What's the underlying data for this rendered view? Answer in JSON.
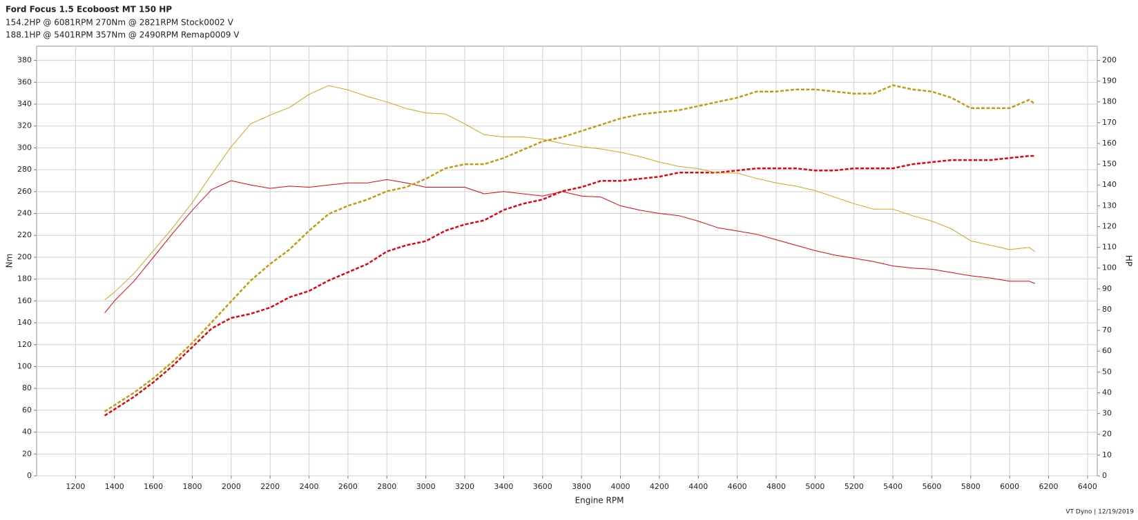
{
  "chart_data": {
    "type": "line",
    "title": "Ford Focus 1.5 Ecoboost MT 150 HP",
    "summary": [
      {
        "text": "154.2HP @  6081RPM  270Nm @ 2821RPM  Stock0002 V",
        "color": "#e8000b"
      },
      {
        "text": "188.1HP @  5401RPM  357Nm @ 2490RPM  Remap0009 V",
        "color": "#8c8c00"
      }
    ],
    "x_label": "Engine RPM",
    "y_label": "Nm",
    "y2_label": "HP",
    "footer": "VT Dyno | 12/19/2019",
    "grid": true,
    "xlim": [
      1000,
      6450
    ],
    "xticks": [
      1200,
      1400,
      1600,
      1800,
      2000,
      2200,
      2400,
      2600,
      2800,
      3000,
      3200,
      3400,
      3600,
      3800,
      4000,
      4200,
      4400,
      4600,
      4800,
      5000,
      5200,
      5400,
      5600,
      5800,
      6000,
      6200,
      6400
    ],
    "ylim": [
      0,
      393
    ],
    "yticks": [
      0,
      20,
      40,
      60,
      80,
      100,
      120,
      140,
      160,
      180,
      200,
      220,
      240,
      260,
      280,
      300,
      320,
      340,
      360,
      380
    ],
    "y2lim": [
      0,
      206.8
    ],
    "y2ticks": [
      0,
      10,
      20,
      30,
      40,
      50,
      60,
      70,
      80,
      90,
      100,
      110,
      120,
      130,
      140,
      150,
      160,
      170,
      180,
      190,
      200
    ],
    "x": [
      1350,
      1400,
      1500,
      1600,
      1700,
      1800,
      1900,
      2000,
      2100,
      2200,
      2300,
      2400,
      2500,
      2600,
      2700,
      2800,
      2900,
      3000,
      3100,
      3200,
      3300,
      3400,
      3500,
      3600,
      3700,
      3800,
      3900,
      4000,
      4100,
      4200,
      4300,
      4400,
      4500,
      4600,
      4700,
      4800,
      4900,
      5000,
      5100,
      5200,
      5300,
      5400,
      5500,
      5600,
      5700,
      5800,
      5900,
      6000,
      6100,
      6130
    ],
    "series": [
      {
        "name": "Stock0002 Nm",
        "color": "#e8000b",
        "width": 1,
        "dashed": false,
        "values": [
          149,
          160,
          178,
          200,
          222,
          243,
          262,
          270,
          266,
          263,
          265,
          264,
          266,
          268,
          268,
          271,
          268,
          264,
          264,
          264,
          258,
          260,
          258,
          256,
          260,
          256,
          255,
          247,
          243,
          240,
          238,
          233,
          227,
          224,
          221,
          216,
          211,
          206,
          202,
          199,
          196,
          192,
          190,
          189,
          186,
          183,
          181,
          178,
          178,
          176
        ]
      },
      {
        "name": "Stock0002 HP",
        "color": "#e8000b",
        "width": 2.5,
        "dashed": true,
        "axis": "y2",
        "values": [
          29,
          32,
          38,
          45,
          53,
          62,
          71,
          76,
          78,
          81,
          86,
          89,
          94,
          98,
          102,
          108,
          111,
          113,
          118,
          121,
          123,
          128,
          131,
          133,
          137,
          139,
          142,
          142,
          143,
          144,
          146,
          146,
          146,
          147,
          148,
          148,
          148,
          147,
          147,
          148,
          148,
          148,
          150,
          151,
          152,
          152,
          152,
          153,
          154,
          154
        ]
      },
      {
        "name": "Remap0009 Nm",
        "color": "#d4a31a",
        "width": 1,
        "dashed": false,
        "values": [
          161,
          168,
          185,
          206,
          227,
          250,
          276,
          301,
          322,
          330,
          337,
          349,
          357,
          353,
          347,
          342,
          336,
          332,
          331,
          322,
          312,
          310,
          310,
          308,
          304,
          301,
          299,
          296,
          292,
          287,
          283,
          281,
          277,
          277,
          272,
          268,
          265,
          261,
          255,
          249,
          244,
          244,
          238,
          233,
          226,
          215,
          211,
          207,
          209,
          205
        ]
      },
      {
        "name": "Remap0009 HP",
        "color": "#c49a0a",
        "width": 2.5,
        "dashed": true,
        "axis": "y2",
        "values": [
          31,
          34,
          40,
          47,
          55,
          64,
          74,
          84,
          94,
          102,
          109,
          118,
          126,
          130,
          133,
          137,
          139,
          143,
          148,
          150,
          150,
          153,
          157,
          161,
          163,
          166,
          169,
          172,
          174,
          175,
          176,
          178,
          180,
          182,
          185,
          185,
          186,
          186,
          185,
          184,
          184,
          188,
          186,
          185,
          182,
          177,
          177,
          177,
          181,
          179
        ]
      }
    ]
  }
}
